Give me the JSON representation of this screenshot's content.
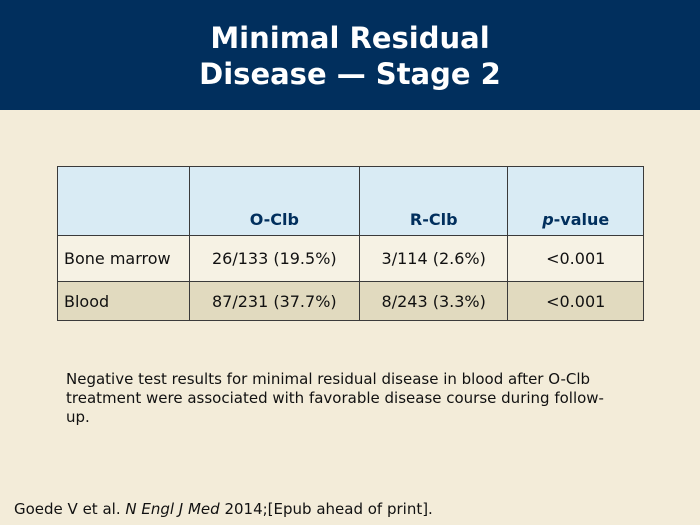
{
  "slide": {
    "title_line1": "Minimal Residual",
    "title_line2": "Disease — Stage 2"
  },
  "table": {
    "headers": {
      "col0": "",
      "col1": "O-Clb",
      "col2": "R-Clb",
      "col3_italic": "p",
      "col3_rest": "-value"
    },
    "rows": [
      {
        "label": "Bone marrow",
        "o_clb": "26/133 (19.5%)",
        "r_clb": "3/114 (2.6%)",
        "p_value": "<0.001"
      },
      {
        "label": "Blood",
        "o_clb": "87/231 (37.7%)",
        "r_clb": "8/243 (3.3%)",
        "p_value": "<0.001"
      }
    ]
  },
  "note": {
    "text": "Negative test results for minimal residual disease in blood after O-Clb treatment were associated with favorable disease course during follow-up."
  },
  "citation": {
    "authors": "Goede V et al. ",
    "journal": "N Engl J Med",
    "details": " 2014;[Epub ahead of print]."
  },
  "colors": {
    "title_bar": "#012f5d",
    "background": "#f3ecd9",
    "header_fill": "#d9ebf4",
    "row_light": "#f6f2e4",
    "row_dark": "#e1dabf"
  }
}
